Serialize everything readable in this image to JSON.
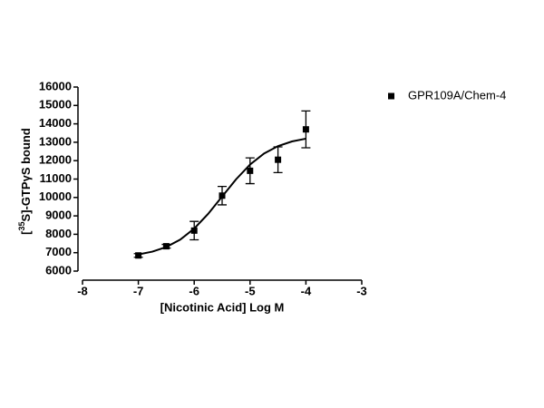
{
  "chart_data": {
    "type": "scatter",
    "x_label": "[Nicotinic Acid] Log M",
    "y_label": {
      "prefix": "[",
      "superscript": "35",
      "suffix": "S]-GTPγS bound"
    },
    "xlim": [
      -8,
      -3
    ],
    "xticks": [
      -8,
      -7,
      -6,
      -5,
      -4,
      -3
    ],
    "ylim": [
      6000,
      16000
    ],
    "yticks": [
      6000,
      7000,
      8000,
      9000,
      10000,
      11000,
      12000,
      13000,
      14000,
      15000,
      16000
    ],
    "series": [
      {
        "name": "GPR109A/Chem-4",
        "color": "#000000",
        "x": [
          -7,
          -6.5,
          -6,
          -5.5,
          -5,
          -4.5,
          -4
        ],
        "values": [
          6850,
          7350,
          8200,
          10100,
          11450,
          12050,
          13700
        ],
        "errors": [
          100,
          100,
          500,
          500,
          700,
          700,
          1000
        ]
      }
    ],
    "fit": {
      "color": "#000000",
      "x": [
        -7,
        -6.75,
        -6.5,
        -6.25,
        -6,
        -5.75,
        -5.5,
        -5.25,
        -5,
        -4.75,
        -4.5,
        -4.25,
        -4
      ],
      "values": [
        6905,
        7056,
        7309,
        7712,
        8310,
        9110,
        10050,
        10989,
        11791,
        12388,
        12791,
        13044,
        13195
      ]
    },
    "legend": "top-right"
  }
}
